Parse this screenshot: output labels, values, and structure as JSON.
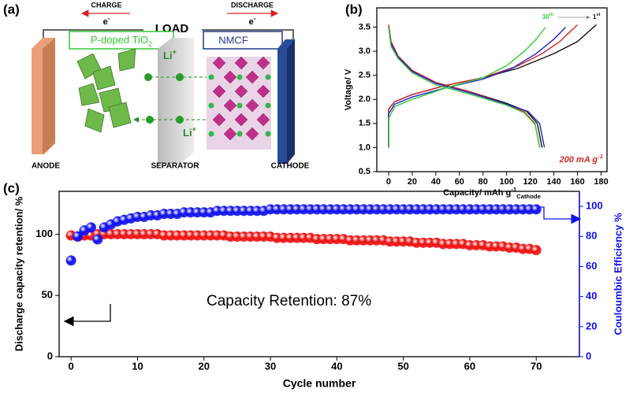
{
  "schematic": {
    "label": "(a)",
    "charge": "CHARGE",
    "electron_left": {
      "symbol": "e",
      "charge": "-"
    },
    "load": "LOAD",
    "discharge": "DISCHARGE",
    "electron_right": {
      "symbol": "e",
      "charge": "-"
    },
    "anode_material": {
      "text": "P-doped TiO",
      "subscript": "2"
    },
    "cathode_material": "NMCF",
    "ion_top": {
      "symbol": "Li",
      "charge": "+"
    },
    "ion_bottom": {
      "symbol": "Li",
      "charge": "+"
    },
    "anode": "ANODE",
    "separator": "SEPARATOR",
    "cathode": "CATHODE"
  },
  "chart_data": [
    {
      "type": "line",
      "panel_label": "(b)",
      "x_label": {
        "text": "Capacity/ mAh g",
        "superscript": "-1",
        "subscript": "Cathode"
      },
      "y_label": "Voltage/ V",
      "xlim": [
        -10,
        185
      ],
      "ylim": [
        0.5,
        3.9
      ],
      "xticks": [
        0,
        20,
        40,
        60,
        80,
        100,
        120,
        140,
        160,
        180
      ],
      "yticks": [
        0.5,
        {
          "value": 1,
          "label": "1.0"
        },
        1.5,
        {
          "value": 2,
          "label": "2.0"
        },
        2.5,
        {
          "value": 3,
          "label": "3.0"
        },
        3.5
      ],
      "annotations": {
        "cycle_last": {
          "number": "30",
          "suffix": "th"
        },
        "cycle_first": {
          "number": "1",
          "suffix": "st"
        },
        "rate": {
          "text": "200 mA g",
          "superscript": "-1"
        }
      },
      "series": [
        {
          "color": "#111111",
          "x": [
            0,
            0,
            5,
            20,
            50,
            80,
            110,
            140,
            160,
            176
          ],
          "values": [
            1.0,
            1.8,
            1.95,
            2.1,
            2.3,
            2.45,
            2.65,
            2.95,
            3.2,
            3.55
          ]
        },
        {
          "color": "#111111",
          "x": [
            0,
            2,
            8,
            20,
            40,
            70,
            100,
            117,
            126,
            130
          ],
          "values": [
            3.55,
            3.2,
            2.9,
            2.6,
            2.35,
            2.15,
            1.92,
            1.75,
            1.5,
            1.0
          ]
        },
        {
          "color": "#d62728",
          "x": [
            0,
            0,
            5,
            20,
            50,
            80,
            110,
            130,
            145,
            160
          ],
          "values": [
            1.0,
            1.8,
            1.95,
            2.1,
            2.3,
            2.45,
            2.7,
            2.95,
            3.2,
            3.55
          ]
        },
        {
          "color": "#d62728",
          "x": [
            0,
            2,
            8,
            20,
            40,
            70,
            100,
            115,
            124,
            128
          ],
          "values": [
            3.55,
            3.2,
            2.9,
            2.6,
            2.35,
            2.15,
            1.9,
            1.74,
            1.5,
            1.0
          ]
        },
        {
          "color": "#2222cc",
          "x": [
            0,
            0,
            5,
            20,
            50,
            80,
            105,
            125,
            140,
            150
          ],
          "values": [
            1.0,
            1.7,
            1.9,
            2.05,
            2.25,
            2.42,
            2.65,
            2.95,
            3.25,
            3.5
          ]
        },
        {
          "color": "#2222cc",
          "x": [
            0,
            2,
            8,
            20,
            40,
            70,
            100,
            118,
            128,
            132
          ],
          "values": [
            3.5,
            3.15,
            2.88,
            2.58,
            2.33,
            2.13,
            1.9,
            1.75,
            1.5,
            1.0
          ]
        },
        {
          "color": "#33cc33",
          "x": [
            0,
            0,
            5,
            20,
            50,
            80,
            100,
            115,
            125,
            133
          ],
          "values": [
            1.0,
            1.6,
            1.85,
            2.0,
            2.25,
            2.45,
            2.7,
            3.0,
            3.25,
            3.5
          ]
        },
        {
          "color": "#33cc33",
          "x": [
            0,
            2,
            8,
            20,
            40,
            70,
            100,
            115,
            124,
            128
          ],
          "values": [
            3.5,
            3.1,
            2.85,
            2.55,
            2.3,
            2.1,
            1.88,
            1.72,
            1.48,
            1.0
          ]
        }
      ]
    },
    {
      "type": "scatter",
      "panel_label": "(c)",
      "x_label": "Cycle number",
      "y_label": "Discharge capacity retention/ %",
      "y2_label": "Couloumbic Efficiency %",
      "annotation": "Capacity Retention: 87%",
      "xlim": [
        -1.8,
        76.5
      ],
      "ylim": [
        0,
        135
      ],
      "y2lim": [
        0,
        110
      ],
      "xticks": [
        0,
        10,
        20,
        30,
        40,
        50,
        60,
        70
      ],
      "yticks": [
        0,
        50,
        100
      ],
      "y2ticks": [
        0,
        20,
        40,
        60,
        80,
        100
      ],
      "x": [
        0,
        1,
        2,
        3,
        4,
        5,
        6,
        7,
        8,
        9,
        10,
        11,
        12,
        13,
        14,
        15,
        16,
        17,
        18,
        19,
        20,
        21,
        22,
        23,
        24,
        25,
        26,
        27,
        28,
        29,
        30,
        31,
        32,
        33,
        34,
        35,
        36,
        37,
        38,
        39,
        40,
        41,
        42,
        43,
        44,
        45,
        46,
        47,
        48,
        49,
        50,
        51,
        52,
        53,
        54,
        55,
        56,
        57,
        58,
        59,
        60,
        61,
        62,
        63,
        64,
        65,
        66,
        67,
        68,
        69,
        70
      ],
      "series": [
        {
          "color": "#ee1111",
          "values": [
            99,
            98,
            99,
            99,
            100,
            100,
            100,
            100,
            100,
            100,
            100,
            100,
            100,
            100,
            99,
            99,
            99,
            99,
            99,
            99,
            99,
            99,
            99,
            99,
            98,
            98,
            98,
            98,
            98,
            98,
            98,
            97,
            97,
            97,
            97,
            97,
            97,
            96,
            96,
            96,
            96,
            96,
            95,
            95,
            95,
            95,
            95,
            95,
            94,
            94,
            94,
            94,
            93,
            93,
            93,
            93,
            92,
            92,
            92,
            92,
            91,
            91,
            91,
            90,
            90,
            90,
            89,
            89,
            88,
            88,
            87
          ]
        },
        {
          "color": "#1111ee",
          "axis": "y2",
          "values": [
            64,
            80,
            84,
            86,
            78,
            86,
            88,
            90,
            91,
            92,
            93,
            93,
            94,
            94,
            95,
            95,
            95,
            96,
            96,
            96,
            96,
            96,
            97,
            97,
            97,
            97,
            97,
            97,
            97,
            97,
            98,
            98,
            98,
            98,
            98,
            98,
            98,
            98,
            98,
            98,
            98,
            98,
            98,
            98,
            98,
            98,
            98,
            98,
            98,
            98,
            98,
            98,
            98,
            98,
            98,
            98,
            98,
            98,
            98,
            98,
            98,
            98,
            98,
            98,
            98,
            98,
            98,
            98,
            98,
            98,
            98
          ]
        }
      ]
    }
  ]
}
